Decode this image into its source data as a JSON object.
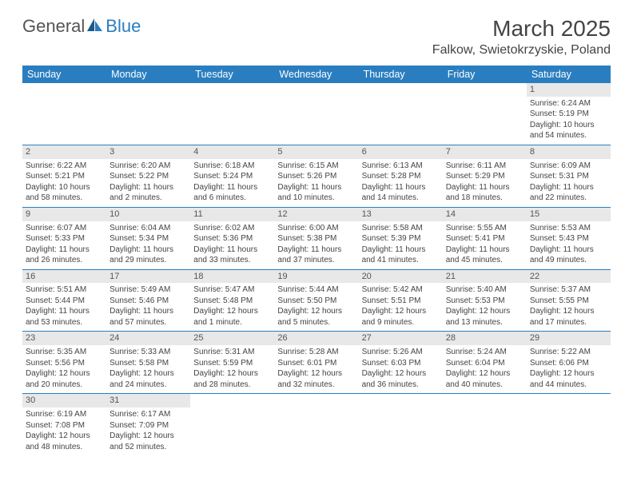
{
  "logo": {
    "text1": "General",
    "text2": "Blue"
  },
  "title": "March 2025",
  "location": "Falkow, Swietokrzyskie, Poland",
  "dayHeaders": [
    "Sunday",
    "Monday",
    "Tuesday",
    "Wednesday",
    "Thursday",
    "Friday",
    "Saturday"
  ],
  "colors": {
    "headerBg": "#2a7ec0",
    "headerText": "#ffffff",
    "dayNumBg": "#e8e8e8",
    "borderColor": "#2a7ec0",
    "textColor": "#444444",
    "bodyBg": "#ffffff"
  },
  "weeks": [
    [
      null,
      null,
      null,
      null,
      null,
      null,
      {
        "n": "1",
        "sr": "Sunrise: 6:24 AM",
        "ss": "Sunset: 5:19 PM",
        "dl": "Daylight: 10 hours and 54 minutes."
      }
    ],
    [
      {
        "n": "2",
        "sr": "Sunrise: 6:22 AM",
        "ss": "Sunset: 5:21 PM",
        "dl": "Daylight: 10 hours and 58 minutes."
      },
      {
        "n": "3",
        "sr": "Sunrise: 6:20 AM",
        "ss": "Sunset: 5:22 PM",
        "dl": "Daylight: 11 hours and 2 minutes."
      },
      {
        "n": "4",
        "sr": "Sunrise: 6:18 AM",
        "ss": "Sunset: 5:24 PM",
        "dl": "Daylight: 11 hours and 6 minutes."
      },
      {
        "n": "5",
        "sr": "Sunrise: 6:15 AM",
        "ss": "Sunset: 5:26 PM",
        "dl": "Daylight: 11 hours and 10 minutes."
      },
      {
        "n": "6",
        "sr": "Sunrise: 6:13 AM",
        "ss": "Sunset: 5:28 PM",
        "dl": "Daylight: 11 hours and 14 minutes."
      },
      {
        "n": "7",
        "sr": "Sunrise: 6:11 AM",
        "ss": "Sunset: 5:29 PM",
        "dl": "Daylight: 11 hours and 18 minutes."
      },
      {
        "n": "8",
        "sr": "Sunrise: 6:09 AM",
        "ss": "Sunset: 5:31 PM",
        "dl": "Daylight: 11 hours and 22 minutes."
      }
    ],
    [
      {
        "n": "9",
        "sr": "Sunrise: 6:07 AM",
        "ss": "Sunset: 5:33 PM",
        "dl": "Daylight: 11 hours and 26 minutes."
      },
      {
        "n": "10",
        "sr": "Sunrise: 6:04 AM",
        "ss": "Sunset: 5:34 PM",
        "dl": "Daylight: 11 hours and 29 minutes."
      },
      {
        "n": "11",
        "sr": "Sunrise: 6:02 AM",
        "ss": "Sunset: 5:36 PM",
        "dl": "Daylight: 11 hours and 33 minutes."
      },
      {
        "n": "12",
        "sr": "Sunrise: 6:00 AM",
        "ss": "Sunset: 5:38 PM",
        "dl": "Daylight: 11 hours and 37 minutes."
      },
      {
        "n": "13",
        "sr": "Sunrise: 5:58 AM",
        "ss": "Sunset: 5:39 PM",
        "dl": "Daylight: 11 hours and 41 minutes."
      },
      {
        "n": "14",
        "sr": "Sunrise: 5:55 AM",
        "ss": "Sunset: 5:41 PM",
        "dl": "Daylight: 11 hours and 45 minutes."
      },
      {
        "n": "15",
        "sr": "Sunrise: 5:53 AM",
        "ss": "Sunset: 5:43 PM",
        "dl": "Daylight: 11 hours and 49 minutes."
      }
    ],
    [
      {
        "n": "16",
        "sr": "Sunrise: 5:51 AM",
        "ss": "Sunset: 5:44 PM",
        "dl": "Daylight: 11 hours and 53 minutes."
      },
      {
        "n": "17",
        "sr": "Sunrise: 5:49 AM",
        "ss": "Sunset: 5:46 PM",
        "dl": "Daylight: 11 hours and 57 minutes."
      },
      {
        "n": "18",
        "sr": "Sunrise: 5:47 AM",
        "ss": "Sunset: 5:48 PM",
        "dl": "Daylight: 12 hours and 1 minute."
      },
      {
        "n": "19",
        "sr": "Sunrise: 5:44 AM",
        "ss": "Sunset: 5:50 PM",
        "dl": "Daylight: 12 hours and 5 minutes."
      },
      {
        "n": "20",
        "sr": "Sunrise: 5:42 AM",
        "ss": "Sunset: 5:51 PM",
        "dl": "Daylight: 12 hours and 9 minutes."
      },
      {
        "n": "21",
        "sr": "Sunrise: 5:40 AM",
        "ss": "Sunset: 5:53 PM",
        "dl": "Daylight: 12 hours and 13 minutes."
      },
      {
        "n": "22",
        "sr": "Sunrise: 5:37 AM",
        "ss": "Sunset: 5:55 PM",
        "dl": "Daylight: 12 hours and 17 minutes."
      }
    ],
    [
      {
        "n": "23",
        "sr": "Sunrise: 5:35 AM",
        "ss": "Sunset: 5:56 PM",
        "dl": "Daylight: 12 hours and 20 minutes."
      },
      {
        "n": "24",
        "sr": "Sunrise: 5:33 AM",
        "ss": "Sunset: 5:58 PM",
        "dl": "Daylight: 12 hours and 24 minutes."
      },
      {
        "n": "25",
        "sr": "Sunrise: 5:31 AM",
        "ss": "Sunset: 5:59 PM",
        "dl": "Daylight: 12 hours and 28 minutes."
      },
      {
        "n": "26",
        "sr": "Sunrise: 5:28 AM",
        "ss": "Sunset: 6:01 PM",
        "dl": "Daylight: 12 hours and 32 minutes."
      },
      {
        "n": "27",
        "sr": "Sunrise: 5:26 AM",
        "ss": "Sunset: 6:03 PM",
        "dl": "Daylight: 12 hours and 36 minutes."
      },
      {
        "n": "28",
        "sr": "Sunrise: 5:24 AM",
        "ss": "Sunset: 6:04 PM",
        "dl": "Daylight: 12 hours and 40 minutes."
      },
      {
        "n": "29",
        "sr": "Sunrise: 5:22 AM",
        "ss": "Sunset: 6:06 PM",
        "dl": "Daylight: 12 hours and 44 minutes."
      }
    ],
    [
      {
        "n": "30",
        "sr": "Sunrise: 6:19 AM",
        "ss": "Sunset: 7:08 PM",
        "dl": "Daylight: 12 hours and 48 minutes."
      },
      {
        "n": "31",
        "sr": "Sunrise: 6:17 AM",
        "ss": "Sunset: 7:09 PM",
        "dl": "Daylight: 12 hours and 52 minutes."
      },
      null,
      null,
      null,
      null,
      null
    ]
  ]
}
